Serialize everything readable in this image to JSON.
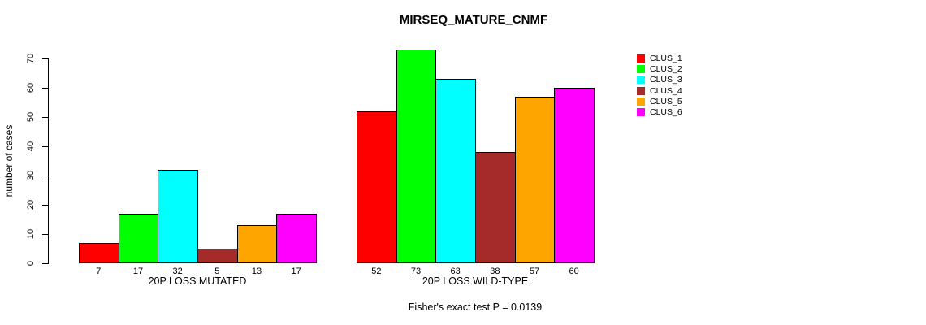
{
  "title": "MIRSEQ_MATURE_CNMF",
  "footer": "Fisher's exact test P = 0.0139",
  "chart_data": {
    "type": "bar",
    "title": "MIRSEQ_MATURE_CNMF",
    "xlabel": "",
    "ylabel": "number of cases",
    "ylim": [
      0,
      70
    ],
    "yticks": [
      0,
      10,
      20,
      30,
      40,
      50,
      60,
      70
    ],
    "grid": false,
    "legend_position": "right",
    "bar_value_labels_shown": true,
    "categories": [
      "20P LOSS MUTATED",
      "20P LOSS WILD-TYPE"
    ],
    "series": [
      {
        "name": "CLUS_1",
        "color": "#FF0000",
        "values": [
          7,
          52
        ]
      },
      {
        "name": "CLUS_2",
        "color": "#00FF00",
        "values": [
          17,
          73
        ]
      },
      {
        "name": "CLUS_3",
        "color": "#00FFFF",
        "values": [
          32,
          63
        ]
      },
      {
        "name": "CLUS_4",
        "color": "#A52A2A",
        "values": [
          5,
          38
        ]
      },
      {
        "name": "CLUS_5",
        "color": "#FFA500",
        "values": [
          13,
          57
        ]
      },
      {
        "name": "CLUS_6",
        "color": "#FF00FF",
        "values": [
          17,
          60
        ]
      }
    ],
    "annotation": "Fisher's exact test P = 0.0139"
  }
}
